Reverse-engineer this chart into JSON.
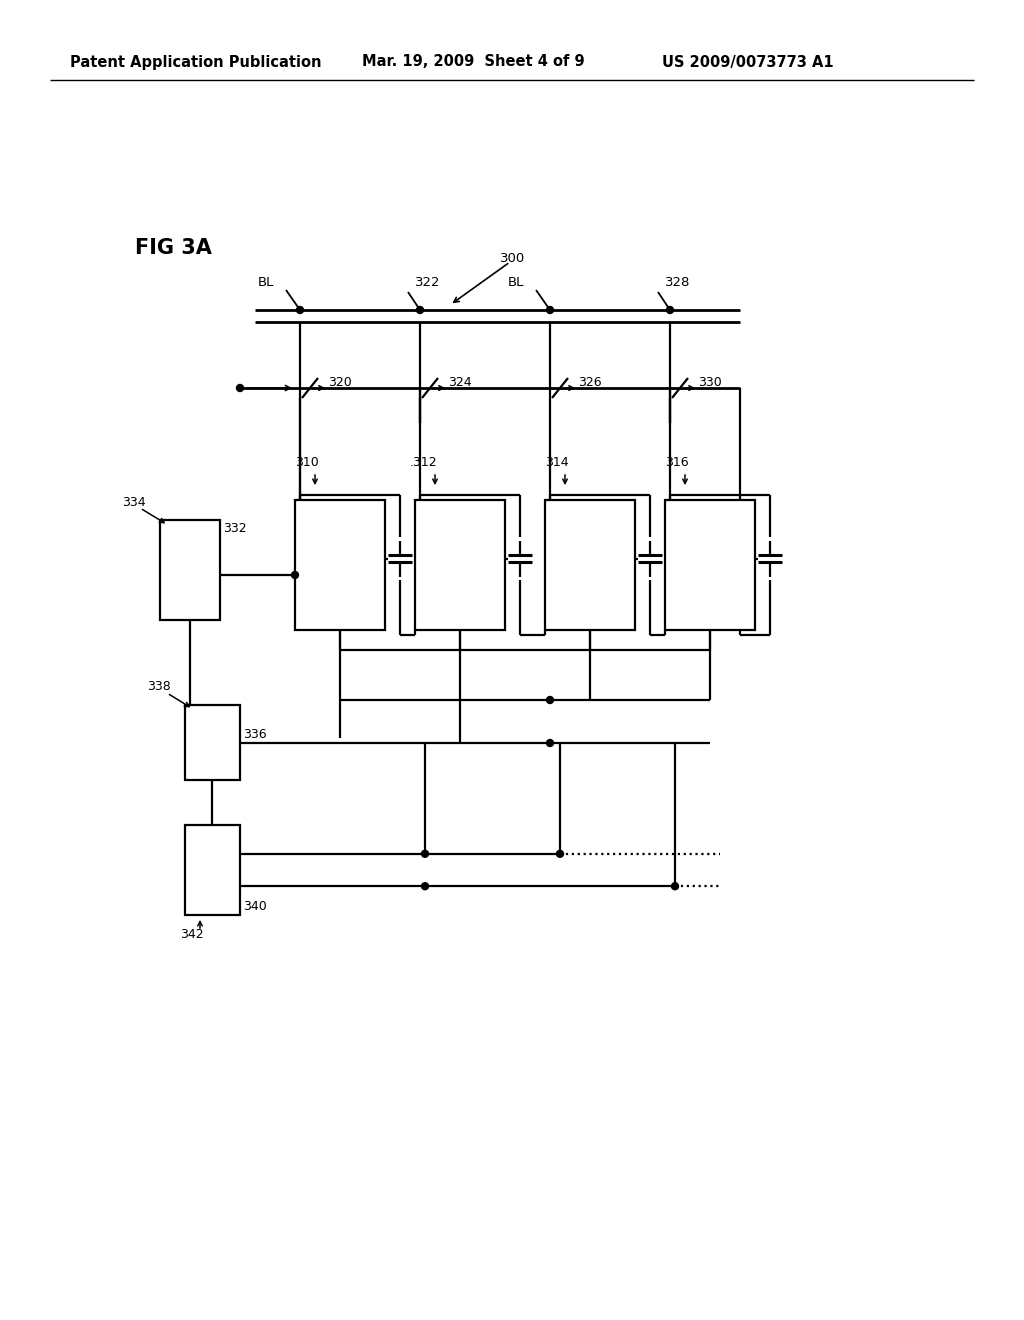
{
  "title_header": "Patent Application Publication",
  "date_header": "Mar. 19, 2009  Sheet 4 of 9",
  "patent_header": "US 2009/0073773 A1",
  "fig_label": "FIG 3A",
  "background_color": "#ffffff",
  "line_color": "#000000",
  "lw": 1.6
}
